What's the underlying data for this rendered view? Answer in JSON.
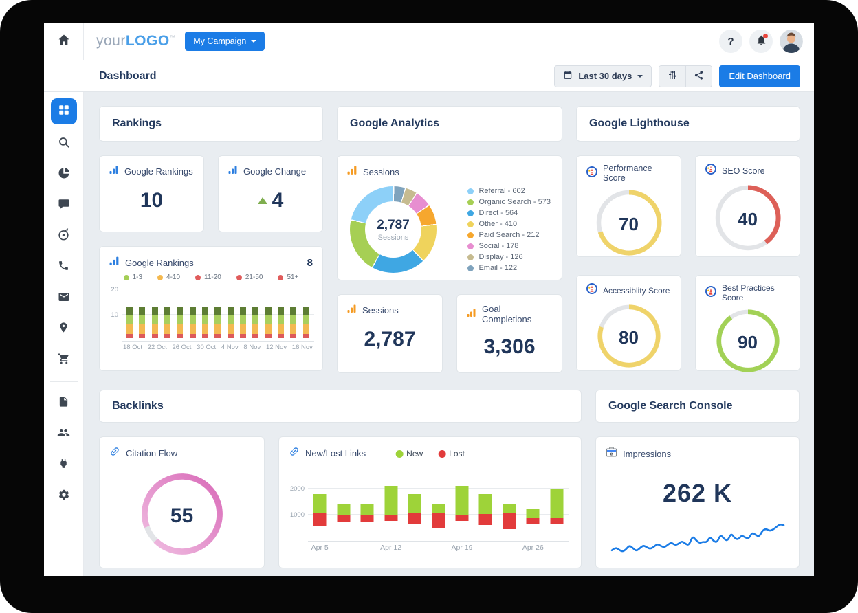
{
  "topbar": {
    "logo_your": "your",
    "logo_bold": "LOGO",
    "logo_tm": "™",
    "campaign_button_label": "My Campaign",
    "help_label": "?"
  },
  "page_header": {
    "title": "Dashboard",
    "date_range_label": "Last 30 days",
    "edit_button_label": "Edit Dashboard"
  },
  "sidebar": {
    "icon_names": [
      "home-icon",
      "dashboard-grid-icon",
      "search-icon",
      "pie-chart-icon",
      "chat-icon",
      "target-icon",
      "phone-icon",
      "mail-icon",
      "location-pin-icon",
      "shopping-cart-icon",
      "file-icon",
      "users-icon",
      "plug-icon",
      "settings-gear-icon"
    ]
  },
  "sections": {
    "rankings": {
      "header": "Rankings",
      "google_rankings": {
        "title": "Google Rankings",
        "value": "10"
      },
      "google_change": {
        "title": "Google Change",
        "value": "4"
      },
      "chart_card": {
        "title": "Google Rankings",
        "badge": "8"
      }
    },
    "analytics": {
      "header": "Google Analytics",
      "donut_card_title": "Sessions",
      "sessions_card": {
        "title": "Sessions",
        "value": "2,787"
      },
      "goals_card": {
        "title": "Goal Completions",
        "value": "3,306"
      }
    },
    "lighthouse": {
      "header": "Google Lighthouse",
      "cards": [
        {
          "title": "Performance Score",
          "score": 70,
          "color": "#efd36a"
        },
        {
          "title": "SEO Score",
          "score": 40,
          "color": "#dd6058"
        },
        {
          "title": "Accessiblity Score",
          "score": 80,
          "color": "#efd36a"
        },
        {
          "title": "Best Practices Score",
          "score": 90,
          "color": "#a2d156"
        }
      ]
    },
    "backlinks": {
      "header": "Backlinks",
      "citation_flow": {
        "title": "Citation Flow",
        "score": 55,
        "arc_percent": 93,
        "arc_start_deg": 250,
        "colors": [
          "#d96ab8",
          "#f0bfe2"
        ]
      },
      "new_lost_title": "New/Lost Links"
    },
    "search_console": {
      "header": "Google Search Console",
      "impressions": {
        "title": "Impressions",
        "value": "262 K"
      }
    }
  },
  "chart_data": [
    {
      "id": "sessions_donut",
      "type": "pie",
      "title": "Sessions",
      "center_value": "2,787",
      "center_label": "Sessions",
      "legend_position": "right",
      "segments": [
        {
          "name": "Referral",
          "value": 602,
          "color": "#8dd0f8"
        },
        {
          "name": "Organic Search",
          "value": 573,
          "color": "#a6cf54"
        },
        {
          "name": "Direct",
          "value": 564,
          "color": "#3fa7e3"
        },
        {
          "name": "Other",
          "value": 410,
          "color": "#efd35c"
        },
        {
          "name": "Paid Search",
          "value": 212,
          "color": "#f6a72e"
        },
        {
          "name": "Social",
          "value": 178,
          "color": "#e78ed0"
        },
        {
          "name": "Display",
          "value": 126,
          "color": "#c6bb90"
        },
        {
          "name": "Email",
          "value": 122,
          "color": "#7fa3bd"
        }
      ]
    },
    {
      "id": "google_rankings_distribution",
      "type": "bar",
      "stacked": true,
      "title": "Google Rankings",
      "ylim": [
        0,
        22
      ],
      "yticks": [
        10,
        20
      ],
      "x_labels": [
        "18 Oct",
        "22 Oct",
        "26 Oct",
        "30 Oct",
        "4 Nov",
        "8 Nov",
        "12 Nov",
        "16 Nov"
      ],
      "legend": [
        {
          "label": "1-3",
          "color": "#a4ce56"
        },
        {
          "label": "4-10",
          "color": "#f4b84e"
        },
        {
          "label": "11-20",
          "color": "#e05c5c"
        },
        {
          "label": "21-50",
          "color": "#e05c5c"
        },
        {
          "label": "51+",
          "color": "#e05c5c"
        }
      ],
      "bar_count": 15,
      "baseline": 1,
      "segments_bottom_to_top": [
        {
          "value": 1.6,
          "color": "#dd5a5a"
        },
        {
          "value": 4.1,
          "color": "#f3b951"
        },
        {
          "value": 3.3,
          "color": "#a9cf5d"
        },
        {
          "value": 3.3,
          "color": "#5d7d33"
        }
      ]
    },
    {
      "id": "new_lost_links",
      "type": "bar",
      "stacked": true,
      "title": "New/Lost Links",
      "ylim": [
        0,
        2400
      ],
      "yticks": [
        1000,
        2000
      ],
      "legend": [
        {
          "label": "New",
          "color": "#9ed339"
        },
        {
          "label": "Lost",
          "color": "#e23b3b"
        }
      ],
      "x_labels": [
        {
          "label": "Apr 5",
          "bar": 0
        },
        {
          "label": "Apr 12",
          "bar": 3
        },
        {
          "label": "Apr 19",
          "bar": 6
        },
        {
          "label": "Apr 26",
          "bar": 9
        }
      ],
      "bars": [
        {
          "lost_from": 550,
          "split": 1050,
          "new_to": 1800
        },
        {
          "lost_from": 750,
          "split": 1000,
          "new_to": 1400
        },
        {
          "lost_from": 750,
          "split": 975,
          "new_to": 1400
        },
        {
          "lost_from": 775,
          "split": 1000,
          "new_to": 2100
        },
        {
          "lost_from": 625,
          "split": 1050,
          "new_to": 1800
        },
        {
          "lost_from": 475,
          "split": 1050,
          "new_to": 1400
        },
        {
          "lost_from": 775,
          "split": 1000,
          "new_to": 2100
        },
        {
          "lost_from": 600,
          "split": 1025,
          "new_to": 1800
        },
        {
          "lost_from": 450,
          "split": 1050,
          "new_to": 1400
        },
        {
          "lost_from": 625,
          "split": 875,
          "new_to": 1250
        },
        {
          "lost_from": 625,
          "split": 875,
          "new_to": 2000
        }
      ]
    },
    {
      "id": "impressions_trend",
      "type": "line",
      "title": "Impressions",
      "color": "#1b7ce6",
      "values": [
        12,
        20,
        14,
        8,
        14,
        26,
        18,
        10,
        18,
        26,
        20,
        16,
        22,
        30,
        24,
        20,
        28,
        34,
        26,
        30,
        38,
        30,
        26,
        52,
        40,
        32,
        36,
        34,
        50,
        38,
        34,
        56,
        44,
        38,
        60,
        46,
        42,
        54,
        48,
        44,
        62,
        55,
        50,
        68,
        72,
        66,
        70,
        78,
        85,
        82
      ]
    }
  ]
}
